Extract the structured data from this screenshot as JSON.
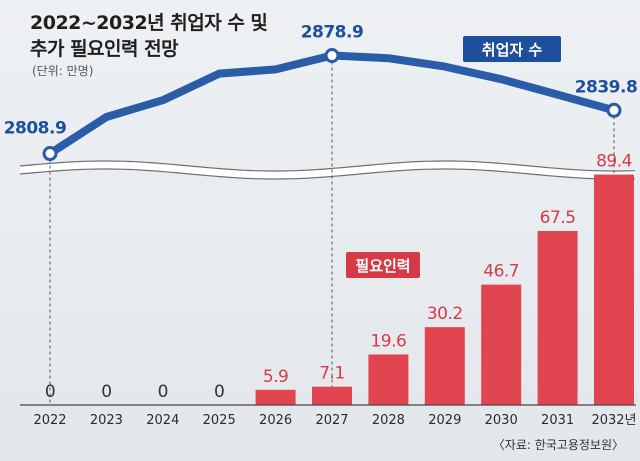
{
  "title_line1": "2022~2032년 취업자 수 및",
  "title_line2": "추가 필요인력 전망",
  "unit": "(단위: 만명)",
  "source": "〈자료: 한국고용정보원〉",
  "colors": {
    "line": "#2a5ca8",
    "bar": "#e04550",
    "label_blue": "#1e4f9c",
    "label_red": "#d73a47"
  },
  "chart_data": [
    {
      "type": "line",
      "series": [
        {
          "name": "취업자 수",
          "x": [
            "2022",
            "2023",
            "2024",
            "2025",
            "2026",
            "2027",
            "2028",
            "2029",
            "2030",
            "2031",
            "2032"
          ],
          "values": [
            2808.9,
            2835,
            2847,
            2866,
            2869,
            2878.9,
            2877,
            2871,
            2862,
            2851,
            2839.8
          ]
        }
      ],
      "labels": [
        {
          "x": "2022",
          "text": "2808.9"
        },
        {
          "x": "2027",
          "text": "2878.9"
        },
        {
          "x": "2032",
          "text": "2839.8"
        }
      ],
      "ylim": [
        2790,
        2890
      ]
    },
    {
      "type": "bar",
      "categories": [
        "2022",
        "2023",
        "2024",
        "2025",
        "2026",
        "2027",
        "2028",
        "2029",
        "2030",
        "2031",
        "2032년"
      ],
      "series": [
        {
          "name": "필요인력",
          "values": [
            0,
            0,
            0,
            0,
            5.9,
            7.1,
            19.6,
            30.2,
            46.7,
            67.5,
            89.4
          ]
        }
      ],
      "value_labels": [
        "0",
        "0",
        "0",
        "0",
        "5.9",
        "7.1",
        "19.6",
        "30.2",
        "46.7",
        "67.5",
        "89.4"
      ],
      "ylim": [
        0,
        90
      ]
    }
  ]
}
